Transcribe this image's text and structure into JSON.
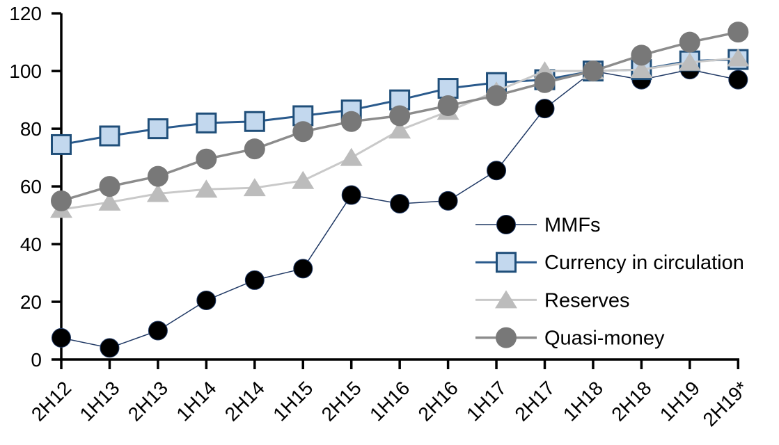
{
  "page": {
    "background": "#FFFFFF"
  },
  "chart_data": {
    "type": "line",
    "title": "",
    "xlabel": "",
    "ylabel": "",
    "categories": [
      "2H12",
      "1H13",
      "2H13",
      "1H14",
      "2H14",
      "1H15",
      "2H15",
      "1H16",
      "2H16",
      "1H17",
      "2H17",
      "1H18",
      "2H18",
      "1H19",
      "2H19*"
    ],
    "y_axis": {
      "min": 0,
      "max": 120,
      "tick_step": 20,
      "tick_labels": [
        "0",
        "20",
        "40",
        "60",
        "80",
        "100",
        "120"
      ]
    },
    "x_axis": {
      "tick_label_rotation_deg": -45
    },
    "grid": false,
    "index_note": "all series equal 100 at 1H18",
    "legend": {
      "position": "inside-right",
      "items": [
        "MMFs",
        "Currency in circulation",
        "Reserves",
        "Quasi-money"
      ]
    },
    "series": [
      {
        "name": "MMFs",
        "marker": "circle",
        "marker_size": 27,
        "marker_fill": "#000000",
        "marker_stroke": "#1F3864",
        "marker_stroke_width": 1,
        "line_color": "#1F3864",
        "line_width": 1.5,
        "values": [
          7.5,
          4,
          10,
          20.5,
          27.5,
          31.5,
          57,
          54,
          55,
          65.5,
          87,
          100,
          97,
          100.5,
          97
        ]
      },
      {
        "name": "Currency in circulation",
        "marker": "square",
        "marker_size": 27,
        "marker_fill": "#C3D8EE",
        "marker_stroke": "#1F4E79",
        "marker_stroke_width": 3,
        "line_color": "#2A5A8C",
        "line_width": 3,
        "values": [
          74.5,
          77.5,
          80,
          82,
          82.5,
          84.5,
          86.5,
          90,
          94,
          96,
          97,
          100,
          100.5,
          103.5,
          104
        ]
      },
      {
        "name": "Reserves",
        "marker": "triangle",
        "marker_size": 30,
        "marker_fill": "#BCBCBC",
        "marker_stroke": "none",
        "marker_stroke_width": 0,
        "line_color": "#C9C9C9",
        "line_width": 3,
        "values": [
          52,
          54.5,
          57.5,
          59,
          59.5,
          62,
          70,
          79.5,
          86,
          93,
          100,
          100,
          100.5,
          103,
          104.5
        ]
      },
      {
        "name": "Quasi-money",
        "marker": "circle",
        "marker_size": 30,
        "marker_fill": "#787878",
        "marker_stroke": "none",
        "marker_stroke_width": 0,
        "line_color": "#8C8C8C",
        "line_width": 3.5,
        "values": [
          55,
          60,
          63.5,
          69.5,
          73,
          79,
          82.5,
          84.5,
          88,
          91.5,
          96,
          100,
          105.5,
          110,
          113.5
        ]
      }
    ]
  }
}
